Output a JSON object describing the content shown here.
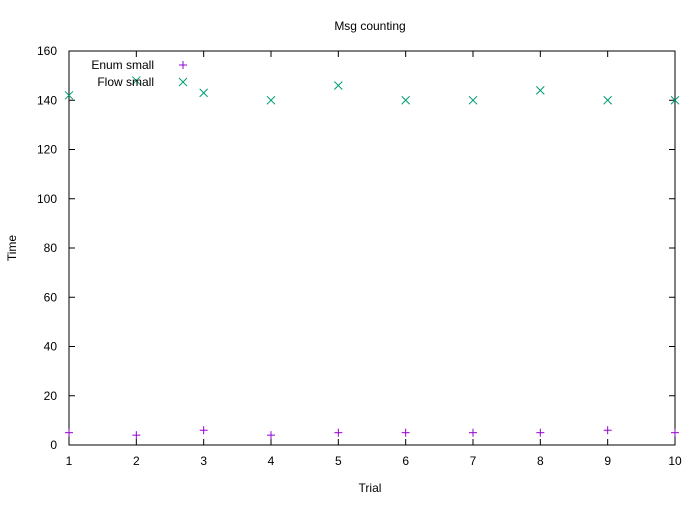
{
  "chart_data": {
    "type": "scatter",
    "title": "Msg counting",
    "xlabel": "Trial",
    "ylabel": "Time",
    "xlim": [
      1,
      10
    ],
    "ylim": [
      0,
      160
    ],
    "xticks": [
      1,
      2,
      3,
      4,
      5,
      6,
      7,
      8,
      9,
      10
    ],
    "yticks": [
      0,
      20,
      40,
      60,
      80,
      100,
      120,
      140,
      160
    ],
    "grid": false,
    "legend_position": "top-left",
    "series": [
      {
        "name": "Enum small",
        "marker": "plus",
        "color": "#9400d3",
        "x": [
          1,
          2,
          3,
          4,
          5,
          6,
          7,
          8,
          9,
          10
        ],
        "y": [
          5,
          4,
          6,
          4,
          5,
          5,
          5,
          5,
          6,
          5
        ]
      },
      {
        "name": "Flow small",
        "marker": "cross",
        "color": "#009e73",
        "x": [
          1,
          2,
          3,
          4,
          5,
          6,
          7,
          8,
          9,
          10
        ],
        "y": [
          142,
          148,
          143,
          140,
          146,
          140,
          140,
          144,
          140,
          140
        ]
      }
    ]
  }
}
